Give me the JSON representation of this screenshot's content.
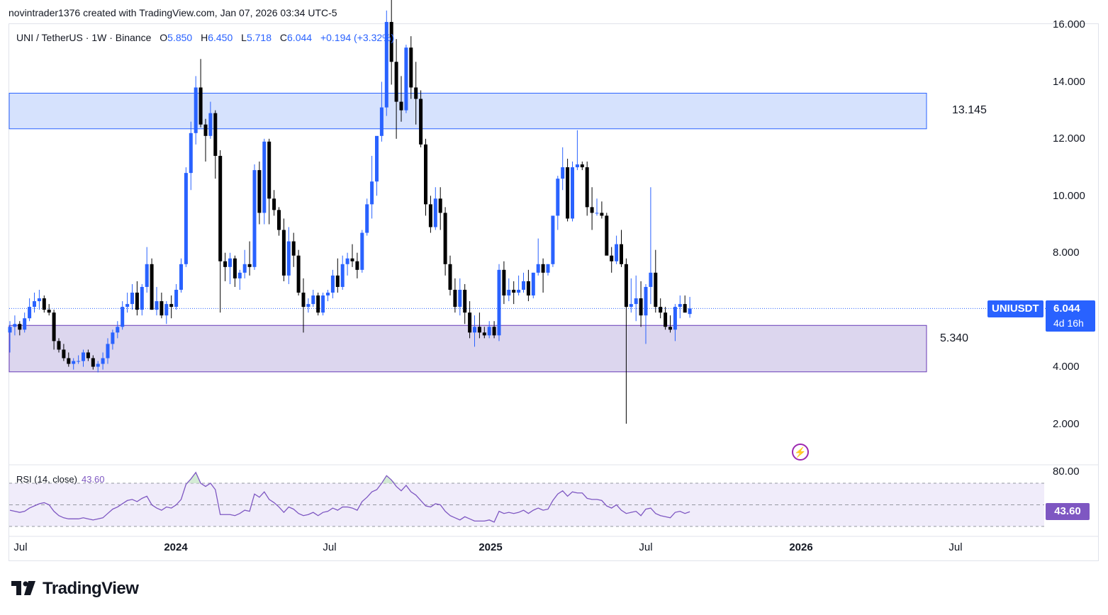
{
  "header": {
    "attribution": "novintrader1376 created with TradingView.com, Jan 07, 2026 03:34 UTC-5"
  },
  "legend": {
    "symbol": "UNI / TetherUS · 1W · Binance",
    "open_label": "O",
    "open": "5.850",
    "high_label": "H",
    "high": "6.450",
    "low_label": "L",
    "low": "5.718",
    "close_label": "C",
    "close": "6.044",
    "change": "+0.194 (+3.32%)"
  },
  "rsi_legend": {
    "label": "RSI (14, close)",
    "value": "43.60"
  },
  "zones": {
    "upper": {
      "label": "13.145",
      "top": 13.6,
      "bottom": 12.35,
      "color": "#d6e2fd"
    },
    "lower": {
      "label": "5.340",
      "top": 5.45,
      "bottom": 3.82,
      "color": "#dcd6ee"
    }
  },
  "price_tag": {
    "symbol": "UNIUSDT",
    "price": "6.044",
    "countdown": "4d 16h"
  },
  "rsi_tag": {
    "value": "43.60"
  },
  "colors": {
    "up": "#2962ff",
    "down": "#000000",
    "rsi_line": "#7e57c2",
    "rsi_band": "#f0ecfa"
  },
  "chart_data": {
    "type": "candlestick",
    "title": "UNI / TetherUS · 1W · Binance",
    "ylim": [
      1.0,
      16.0
    ],
    "yticks": [
      "16.000",
      "14.000",
      "12.000",
      "10.000",
      "8.000",
      "6.000",
      "4.000",
      "2.000"
    ],
    "y_axis_labels": [
      "16.000",
      "14.000",
      "12.000",
      "10.000",
      "8.000",
      "4.000",
      "2.000"
    ],
    "xticks": [
      {
        "label": "Jul",
        "bold": false
      },
      {
        "label": "2024",
        "bold": true
      },
      {
        "label": "Jul",
        "bold": false
      },
      {
        "label": "2025",
        "bold": true
      },
      {
        "label": "Jul",
        "bold": false
      },
      {
        "label": "2026",
        "bold": true
      },
      {
        "label": "Jul",
        "bold": false
      }
    ],
    "candles_ohlc": [
      [
        5.2,
        5.6,
        4.5,
        5.4
      ],
      [
        5.4,
        5.8,
        5.1,
        5.5
      ],
      [
        5.5,
        5.6,
        5.1,
        5.3
      ],
      [
        5.3,
        5.9,
        5.2,
        5.7
      ],
      [
        5.7,
        6.4,
        5.6,
        6.1
      ],
      [
        6.1,
        6.6,
        5.9,
        6.3
      ],
      [
        6.3,
        6.7,
        6.0,
        6.4
      ],
      [
        6.4,
        6.5,
        5.9,
        6.0
      ],
      [
        6.0,
        6.2,
        5.8,
        5.9
      ],
      [
        5.9,
        6.0,
        4.6,
        4.9
      ],
      [
        4.9,
        5.0,
        4.5,
        4.6
      ],
      [
        4.6,
        4.8,
        4.2,
        4.3
      ],
      [
        4.3,
        4.5,
        4.0,
        4.1
      ],
      [
        4.1,
        4.3,
        3.9,
        4.2
      ],
      [
        4.2,
        4.4,
        4.1,
        4.2
      ],
      [
        4.2,
        4.6,
        4.0,
        4.5
      ],
      [
        4.5,
        4.6,
        4.2,
        4.3
      ],
      [
        4.3,
        4.4,
        3.9,
        4.0
      ],
      [
        4.0,
        4.2,
        3.8,
        4.1
      ],
      [
        4.1,
        4.5,
        3.9,
        4.3
      ],
      [
        4.3,
        5.0,
        4.1,
        4.8
      ],
      [
        4.8,
        5.3,
        4.6,
        5.2
      ],
      [
        5.2,
        5.6,
        5.0,
        5.4
      ],
      [
        5.4,
        6.3,
        5.3,
        6.1
      ],
      [
        6.1,
        6.6,
        5.9,
        6.2
      ],
      [
        6.2,
        6.9,
        6.0,
        6.6
      ],
      [
        6.6,
        7.0,
        5.8,
        6.0
      ],
      [
        6.0,
        6.9,
        5.8,
        6.8
      ],
      [
        6.8,
        8.2,
        6.6,
        7.6
      ],
      [
        7.6,
        7.8,
        6.0,
        6.0
      ],
      [
        6.0,
        6.8,
        5.8,
        6.3
      ],
      [
        6.3,
        6.6,
        5.7,
        5.8
      ],
      [
        5.8,
        6.3,
        5.5,
        6.2
      ],
      [
        6.2,
        6.5,
        5.7,
        6.1
      ],
      [
        6.1,
        6.9,
        6.0,
        6.7
      ],
      [
        6.7,
        7.8,
        6.6,
        7.6
      ],
      [
        7.6,
        11.0,
        7.5,
        10.8
      ],
      [
        10.8,
        12.6,
        10.2,
        12.2
      ],
      [
        12.2,
        14.2,
        11.8,
        13.8
      ],
      [
        13.8,
        14.8,
        12.4,
        12.5
      ],
      [
        12.5,
        12.7,
        11.2,
        12.1
      ],
      [
        12.1,
        13.3,
        12.0,
        12.9
      ],
      [
        12.9,
        13.0,
        10.6,
        11.4
      ],
      [
        11.4,
        11.6,
        5.9,
        7.7
      ],
      [
        7.7,
        8.0,
        7.0,
        7.5
      ],
      [
        7.5,
        8.0,
        6.9,
        7.8
      ],
      [
        7.8,
        7.9,
        6.8,
        7.1
      ],
      [
        7.1,
        7.4,
        6.7,
        7.3
      ],
      [
        7.3,
        8.1,
        7.1,
        7.6
      ],
      [
        7.6,
        8.4,
        7.2,
        7.5
      ],
      [
        7.5,
        11.1,
        7.4,
        10.9
      ],
      [
        10.9,
        11.2,
        9.0,
        9.4
      ],
      [
        9.4,
        12.0,
        9.0,
        11.9
      ],
      [
        11.9,
        12.0,
        9.0,
        9.9
      ],
      [
        9.9,
        10.2,
        9.3,
        9.5
      ],
      [
        9.5,
        9.6,
        8.6,
        8.8
      ],
      [
        8.8,
        9.2,
        7.0,
        7.2
      ],
      [
        7.2,
        8.9,
        6.9,
        8.4
      ],
      [
        8.4,
        8.7,
        7.5,
        7.9
      ],
      [
        7.9,
        8.1,
        6.5,
        6.6
      ],
      [
        6.6,
        7.1,
        5.2,
        6.1
      ],
      [
        6.1,
        6.4,
        5.9,
        6.2
      ],
      [
        6.2,
        6.7,
        6.1,
        6.5
      ],
      [
        6.5,
        6.6,
        5.8,
        5.9
      ],
      [
        5.9,
        6.6,
        5.8,
        6.5
      ],
      [
        6.5,
        6.7,
        6.3,
        6.6
      ],
      [
        6.6,
        7.4,
        6.4,
        7.2
      ],
      [
        7.2,
        7.8,
        6.6,
        6.8
      ],
      [
        6.8,
        7.9,
        6.7,
        7.6
      ],
      [
        7.6,
        8.0,
        7.2,
        7.8
      ],
      [
        7.8,
        8.3,
        7.5,
        7.7
      ],
      [
        7.7,
        8.0,
        7.1,
        7.4
      ],
      [
        7.4,
        8.8,
        7.3,
        8.7
      ],
      [
        8.7,
        9.9,
        8.6,
        9.7
      ],
      [
        9.7,
        11.4,
        9.2,
        10.5
      ],
      [
        10.5,
        12.0,
        10.0,
        12.1
      ],
      [
        12.1,
        14.0,
        11.9,
        13.1
      ],
      [
        13.1,
        16.5,
        12.8,
        16.1
      ],
      [
        16.1,
        17.0,
        13.9,
        14.7
      ],
      [
        14.7,
        15.5,
        12.0,
        13.3
      ],
      [
        13.3,
        14.2,
        12.6,
        13.0
      ],
      [
        13.0,
        15.3,
        12.9,
        15.2
      ],
      [
        15.2,
        15.6,
        13.4,
        13.8
      ],
      [
        13.8,
        14.7,
        12.5,
        13.4
      ],
      [
        13.4,
        13.7,
        11.7,
        11.8
      ],
      [
        11.8,
        12.0,
        9.3,
        9.7
      ],
      [
        9.7,
        10.0,
        8.7,
        8.9
      ],
      [
        8.9,
        10.3,
        8.8,
        9.9
      ],
      [
        9.9,
        10.3,
        8.8,
        9.4
      ],
      [
        9.4,
        9.6,
        7.2,
        7.6
      ],
      [
        7.6,
        7.9,
        6.5,
        6.7
      ],
      [
        6.7,
        7.1,
        5.9,
        6.1
      ],
      [
        6.1,
        7.1,
        5.8,
        6.7
      ],
      [
        6.7,
        6.9,
        5.5,
        5.9
      ],
      [
        5.9,
        6.3,
        5.0,
        5.2
      ],
      [
        5.2,
        5.8,
        4.7,
        5.4
      ],
      [
        5.4,
        5.9,
        5.0,
        5.2
      ],
      [
        5.2,
        5.4,
        5.0,
        5.1
      ],
      [
        5.1,
        5.6,
        5.0,
        5.4
      ],
      [
        5.4,
        5.6,
        5.0,
        5.1
      ],
      [
        5.1,
        7.6,
        4.9,
        7.4
      ],
      [
        7.4,
        7.7,
        6.2,
        6.5
      ],
      [
        6.5,
        7.1,
        6.3,
        6.7
      ],
      [
        6.7,
        7.0,
        6.2,
        6.6
      ],
      [
        6.6,
        7.2,
        6.5,
        6.7
      ],
      [
        6.7,
        7.3,
        6.6,
        7.0
      ],
      [
        7.0,
        7.4,
        6.3,
        6.5
      ],
      [
        6.5,
        7.3,
        6.4,
        7.3
      ],
      [
        7.3,
        8.5,
        7.2,
        7.6
      ],
      [
        7.6,
        7.8,
        6.6,
        7.3
      ],
      [
        7.3,
        7.6,
        7.2,
        7.6
      ],
      [
        7.6,
        8.5,
        7.5,
        9.3
      ],
      [
        9.3,
        10.7,
        8.8,
        10.6
      ],
      [
        10.6,
        11.7,
        10.2,
        11.0
      ],
      [
        11.0,
        11.3,
        9.1,
        9.2
      ],
      [
        9.2,
        11.2,
        9.1,
        11.0
      ],
      [
        11.0,
        12.3,
        10.9,
        11.1
      ],
      [
        11.1,
        11.2,
        10.9,
        11.0
      ],
      [
        11.0,
        11.2,
        9.3,
        9.6
      ],
      [
        9.6,
        10.3,
        8.8,
        9.4
      ],
      [
        9.4,
        9.9,
        9.3,
        9.4
      ],
      [
        9.4,
        9.8,
        9.2,
        9.3
      ],
      [
        9.3,
        9.4,
        8.0,
        7.9
      ],
      [
        7.9,
        8.2,
        7.3,
        7.7
      ],
      [
        7.7,
        8.6,
        7.6,
        8.3
      ],
      [
        8.3,
        8.8,
        7.5,
        7.6
      ],
      [
        7.6,
        7.8,
        2.0,
        6.1
      ],
      [
        6.1,
        7.1,
        5.9,
        6.2
      ],
      [
        6.2,
        7.2,
        5.6,
        6.4
      ],
      [
        6.4,
        7.0,
        5.4,
        5.8
      ],
      [
        5.8,
        6.9,
        4.8,
        6.8
      ],
      [
        6.8,
        10.3,
        6.2,
        7.3
      ],
      [
        7.3,
        8.1,
        5.9,
        6.1
      ],
      [
        6.1,
        6.4,
        5.7,
        5.9
      ],
      [
        5.9,
        6.1,
        5.3,
        5.4
      ],
      [
        5.4,
        5.8,
        5.2,
        5.3
      ],
      [
        5.3,
        6.2,
        4.9,
        6.1
      ],
      [
        6.1,
        6.5,
        5.7,
        6.2
      ],
      [
        6.2,
        6.5,
        5.9,
        5.9
      ],
      [
        5.85,
        6.45,
        5.718,
        6.044
      ]
    ],
    "current_price": 6.044,
    "rsi": {
      "name": "RSI (14, close)",
      "ylim": [
        20,
        85
      ],
      "upper_band": 70,
      "middle": 50,
      "lower_band": 30,
      "y_axis_label": "80.00",
      "values": [
        45,
        44,
        43,
        44,
        47,
        49,
        51,
        52,
        50,
        44,
        40,
        38,
        37,
        37,
        37,
        38,
        37,
        36,
        37,
        38,
        42,
        46,
        48,
        51,
        54,
        55,
        53,
        56,
        58,
        50,
        47,
        45,
        48,
        47,
        50,
        55,
        69,
        74,
        80,
        70,
        67,
        70,
        64,
        41,
        41,
        41,
        40,
        42,
        45,
        44,
        60,
        57,
        62,
        55,
        52,
        48,
        43,
        48,
        46,
        42,
        40,
        41,
        43,
        40,
        43,
        44,
        47,
        45,
        48,
        48,
        47,
        45,
        53,
        57,
        62,
        64,
        70,
        77,
        73,
        67,
        63,
        68,
        62,
        59,
        54,
        49,
        48,
        51,
        50,
        44,
        40,
        38,
        36,
        39,
        37,
        35,
        35,
        35,
        36,
        34,
        44,
        42,
        43,
        42,
        43,
        45,
        42,
        45,
        47,
        45,
        46,
        54,
        60,
        63,
        58,
        62,
        61,
        61,
        56,
        55,
        55,
        54,
        49,
        47,
        50,
        45,
        42,
        43,
        44,
        40,
        46,
        47,
        42,
        40,
        39,
        38,
        43,
        44,
        42,
        43.6
      ]
    }
  }
}
